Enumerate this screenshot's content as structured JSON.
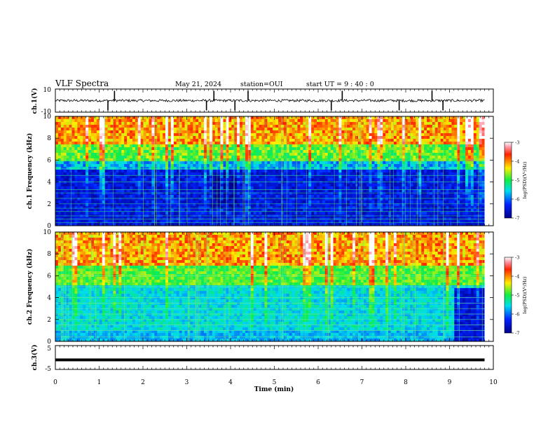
{
  "header": {
    "title": "VLF Spectra",
    "date": "May 21, 2024",
    "station": "station=OUI",
    "start": "start UT = 9 : 40 : 0"
  },
  "chart_data": {
    "type": "heatmap",
    "x_axis": {
      "label": "Time (min)",
      "range": [
        0,
        10
      ],
      "ticks": [
        0,
        1,
        2,
        3,
        4,
        5,
        6,
        7,
        8,
        9,
        10
      ],
      "tick_labels": [
        "0",
        "1",
        "2",
        "3",
        "4",
        "5",
        "6",
        "7",
        "8",
        "9",
        "10"
      ],
      "data_end": 9.8
    },
    "panels": [
      {
        "id": "ch1-waveform",
        "type": "line",
        "ylabel": "ch.1(V)",
        "ylim": [
          -10,
          10
        ],
        "tick_labels": [
          "10",
          "-10"
        ],
        "baseline": 0,
        "spike_times": [
          1.2,
          1.35,
          3.45,
          3.62,
          4.1,
          4.4,
          6.3,
          6.55,
          7.85,
          8.6,
          8.85
        ]
      },
      {
        "id": "ch1-spectrogram",
        "type": "heatmap",
        "ylabel": "ch.1 Frequency (kHz)",
        "ylim": [
          0,
          10
        ],
        "y_ticks": [
          0,
          2,
          4,
          6,
          8,
          10
        ],
        "y_tick_labels": [
          "0",
          "2",
          "4",
          "6",
          "8",
          "10"
        ],
        "colorbar": {
          "label": "log(PSD)(V²/Hz)",
          "range": [
            -7,
            -3
          ],
          "tick_labels": [
            "-3",
            "-4",
            "-5",
            "-6",
            "-7"
          ]
        }
      },
      {
        "id": "ch2-spectrogram",
        "type": "heatmap",
        "ylabel": "ch.2 Frequency (kHz)",
        "ylim": [
          0,
          10
        ],
        "y_ticks": [
          0,
          2,
          4,
          6,
          8,
          10
        ],
        "y_tick_labels": [
          "0",
          "2",
          "4",
          "6",
          "8",
          "10"
        ],
        "colorbar": {
          "label": "log(PSD)(V²/Hz)",
          "range": [
            -7,
            -3
          ],
          "tick_labels": [
            "-3",
            "-4",
            "-5",
            "-6",
            "-7"
          ]
        }
      },
      {
        "id": "ch3-waveform",
        "type": "line",
        "ylabel": "ch.3(V)",
        "ylim": [
          -5,
          5
        ],
        "tick_labels": [
          "5",
          "-5"
        ],
        "baseline": -1
      }
    ]
  }
}
